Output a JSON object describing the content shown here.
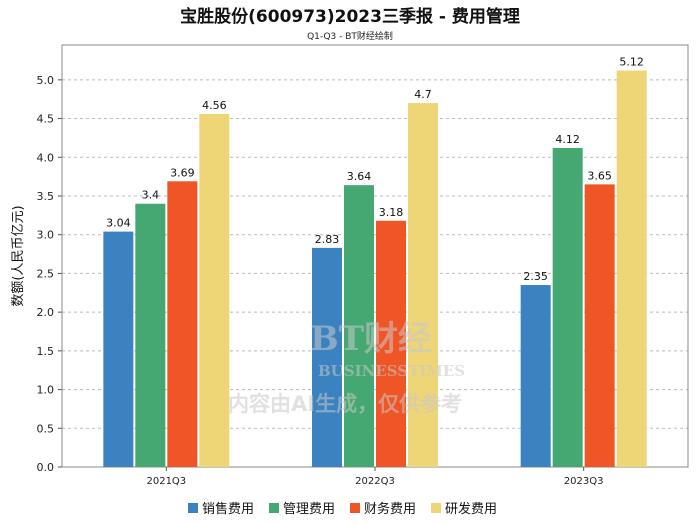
{
  "chart_data": {
    "type": "bar",
    "title": "宝胜股份(600973)2023三季报 - 费用管理",
    "subtitle": "Q1-Q3 - BT财经绘制",
    "xlabel": "",
    "ylabel": "数额(人民币亿元)",
    "ylim": [
      0,
      5.45
    ],
    "yticks": [
      "0.0",
      "0.5",
      "1.0",
      "1.5",
      "2.0",
      "2.5",
      "3.0",
      "3.5",
      "4.0",
      "4.5",
      "5.0"
    ],
    "grid": true,
    "legend_position": "bottom",
    "categories": [
      "2021Q3",
      "2022Q3",
      "2023Q3"
    ],
    "series": [
      {
        "name": "销售费用",
        "color": "#3a82c0",
        "values": [
          3.04,
          2.83,
          2.35
        ],
        "labels": [
          "3.04",
          "2.83",
          "2.35"
        ]
      },
      {
        "name": "管理费用",
        "color": "#45a872",
        "values": [
          3.4,
          3.64,
          4.12
        ],
        "labels": [
          "3.4",
          "3.64",
          "4.12"
        ]
      },
      {
        "name": "财务费用",
        "color": "#f05526",
        "values": [
          3.69,
          3.18,
          3.65
        ],
        "labels": [
          "3.69",
          "3.18",
          "3.65"
        ]
      },
      {
        "name": "研发费用",
        "color": "#eed677",
        "values": [
          4.56,
          4.7,
          5.12
        ],
        "labels": [
          "4.56",
          "4.7",
          "5.12"
        ]
      }
    ]
  },
  "watermark": {
    "brand": "BT财经",
    "brand_en": "BUSINESSTIMES",
    "notice": "内容由AI生成，仅供参考"
  }
}
